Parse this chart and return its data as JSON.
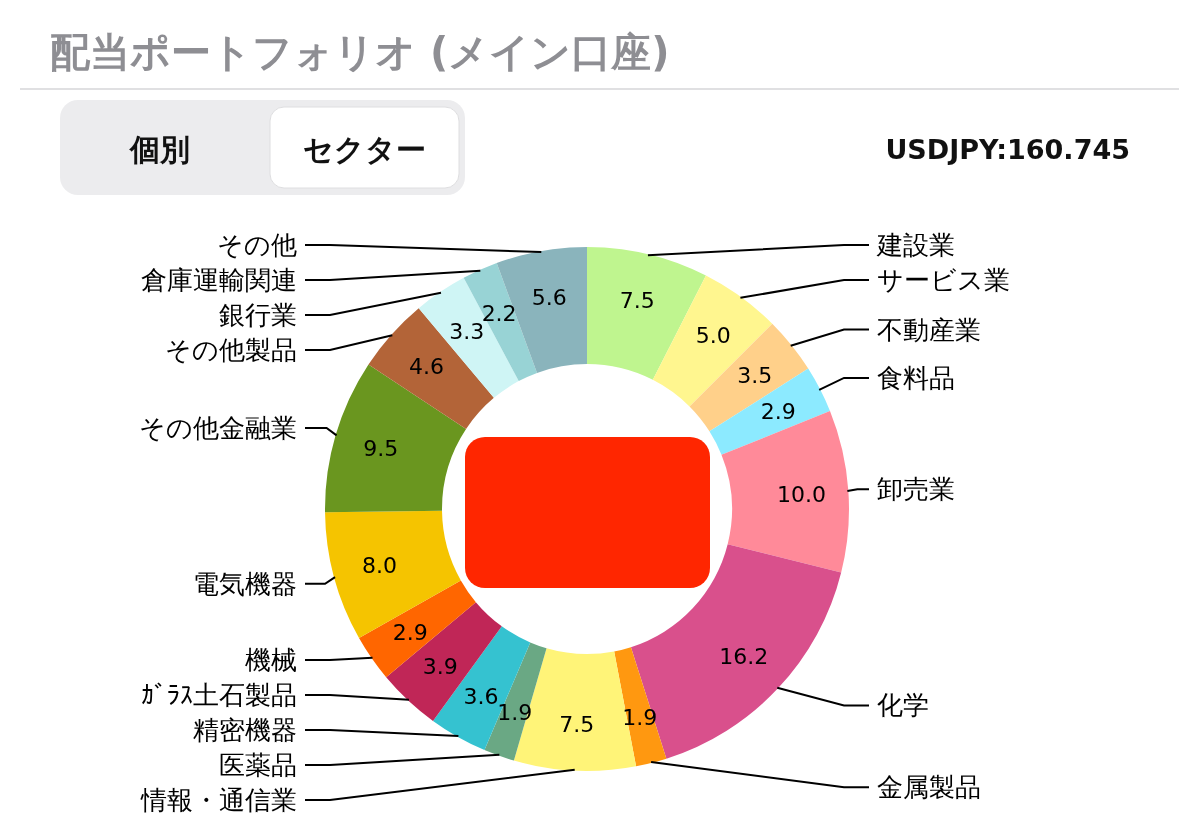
{
  "chart_data": {
    "type": "donut",
    "title": "配当ポートフォリオ (メイン口座)",
    "categories": [
      "建設業",
      "サービス業",
      "不動産業",
      "食料品",
      "卸売業",
      "化学",
      "金属製品",
      "情報・通信業",
      "医薬品",
      "精密機器",
      "ｶﾞﾗｽ土石製品",
      "機械",
      "電気機器",
      "その他金融業",
      "その他製品",
      "銀行業",
      "倉庫運輸関連",
      "その他"
    ],
    "values": [
      7.5,
      5.0,
      3.5,
      2.9,
      10.0,
      16.2,
      1.9,
      7.5,
      1.9,
      3.6,
      3.9,
      2.9,
      8.0,
      9.5,
      4.6,
      3.3,
      2.2,
      5.6
    ],
    "colors": [
      "#bff58f",
      "#fff68f",
      "#ffd08a",
      "#8ceaff",
      "#ff8a99",
      "#d9508c",
      "#ff9810",
      "#fff478",
      "#6aa884",
      "#35c2d0",
      "#c02657",
      "#ff6600",
      "#f5c400",
      "#6a961f",
      "#b36438",
      "#cff5f5",
      "#98d3d5",
      "#8ab4bc"
    ],
    "value_labels": [
      "7.5",
      "5.0",
      "3.5",
      "2.9",
      "10.0",
      "16.2",
      "1.9",
      "7.5",
      "1.9",
      "3.6",
      "3.9",
      "2.9",
      "8.0",
      "9.5",
      "4.6",
      "3.3",
      "2.2",
      "5.6"
    ],
    "annotations": [
      "個別",
      "セクター",
      "USDJPY:160.745"
    ]
  }
}
